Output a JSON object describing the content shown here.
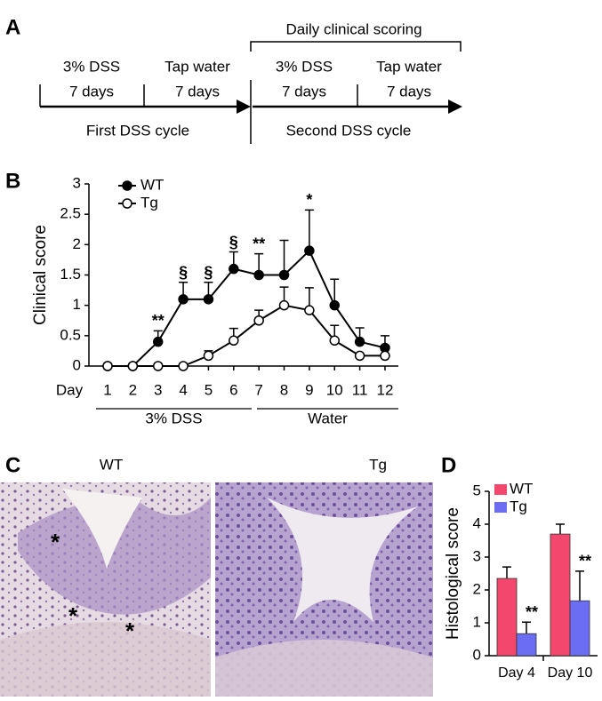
{
  "panels": {
    "a": "A",
    "b": "B",
    "c": "C",
    "d": "D"
  },
  "timeline": {
    "header": "Daily clinical scoring",
    "phases": [
      {
        "treatment": "3% DSS",
        "duration": "7 days"
      },
      {
        "treatment": "Tap water",
        "duration": "7 days"
      },
      {
        "treatment": "3% DSS",
        "duration": "7 days"
      },
      {
        "treatment": "Tap water",
        "duration": "7 days"
      }
    ],
    "cycles": [
      "First DSS cycle",
      "Second DSS cycle"
    ]
  },
  "chart_data": [
    {
      "type": "line",
      "ylabel": "Clinical score",
      "xlabel": "Day",
      "categories": [
        "1",
        "2",
        "3",
        "4",
        "5",
        "6",
        "7",
        "8",
        "9",
        "10",
        "11",
        "12"
      ],
      "x_groups": [
        "3% DSS",
        "Water"
      ],
      "ylim": [
        0,
        3
      ],
      "yticks": [
        0,
        0.5,
        1,
        1.5,
        2,
        2.5,
        3
      ],
      "series": [
        {
          "name": "WT",
          "color": "#000000",
          "fill": "#000000",
          "values": [
            0,
            0,
            0.4,
            1.1,
            1.1,
            1.6,
            1.5,
            1.5,
            1.9,
            1.0,
            0.4,
            0.3
          ],
          "errors": [
            0,
            0,
            0.18,
            0.28,
            0.28,
            0.28,
            0.35,
            0.57,
            0.67,
            0.43,
            0.23,
            0.2
          ]
        },
        {
          "name": "Tg",
          "color": "#000000",
          "fill": "#ffffff",
          "values": [
            0,
            0,
            0,
            0,
            0.17,
            0.42,
            0.75,
            1.0,
            0.92,
            0.42,
            0.17,
            0.17
          ],
          "errors": [
            0,
            0,
            0,
            0,
            0.08,
            0.2,
            0.17,
            0.3,
            0.37,
            0.25,
            0,
            0
          ]
        }
      ],
      "significance": [
        null,
        null,
        "**",
        "§",
        "§",
        "§",
        "**",
        null,
        "*",
        null,
        null,
        null
      ],
      "legend": "top-left"
    },
    {
      "type": "bar",
      "ylabel": "Histological score",
      "categories": [
        "Day 4",
        "Day 10"
      ],
      "ylim": [
        0,
        5
      ],
      "yticks": [
        0,
        1,
        2,
        3,
        4,
        5
      ],
      "series": [
        {
          "name": "WT",
          "color": "#f4476d",
          "values": [
            2.35,
            3.7
          ],
          "errors": [
            0.35,
            0.3
          ],
          "significance": [
            null,
            null
          ]
        },
        {
          "name": "Tg",
          "color": "#6b6df2",
          "values": [
            0.67,
            1.67
          ],
          "errors": [
            0.35,
            0.9
          ],
          "significance": [
            "**",
            "**"
          ]
        }
      ],
      "legend": "top-left"
    }
  ],
  "micrographs": {
    "labels": [
      "WT",
      "Tg"
    ],
    "wt_marks": [
      "*",
      "*",
      "*"
    ]
  }
}
